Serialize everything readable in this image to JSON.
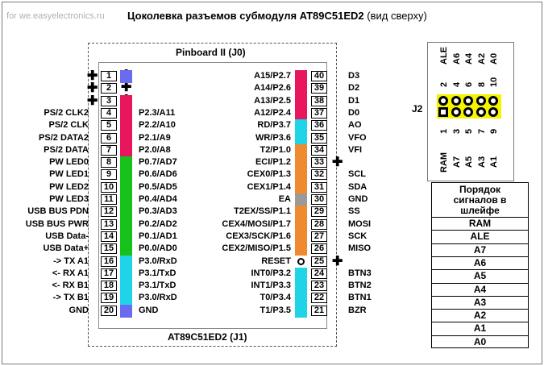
{
  "watermark": "for we.easyelectronics.ru",
  "title": "Цоколевка разъемов субмодуля AT89C51ED2",
  "title_sub": "(вид сверху)",
  "top_connector": "Pinboard II (J0)",
  "bottom_connector": "AT89C51ED2 (J1)",
  "colors": {
    "blue": "#6b6bf0",
    "red": "#e8175d",
    "green": "#18c01c",
    "cyan": "#20d4e8",
    "orange": "#f08a30",
    "gray": "#9a9a9a",
    "yellow": "#f4f400"
  },
  "left_pins": [
    {
      "num": "1",
      "outer": "✚",
      "inner": "",
      "pin": "plus",
      "color": "blue"
    },
    {
      "num": "2",
      "outer": "✚",
      "inner": "",
      "pin": "plus",
      "color": "none"
    },
    {
      "num": "3",
      "outer": "✚",
      "inner": "",
      "pin": "plus",
      "color": "red"
    },
    {
      "num": "4",
      "outer": "PS/2 CLK2",
      "inner": "P2.3/A11",
      "pin": "dot",
      "color": "red"
    },
    {
      "num": "5",
      "outer": "PS/2 CLK",
      "inner": "P2.2/A10",
      "pin": "dot",
      "color": "red"
    },
    {
      "num": "6",
      "outer": "PS/2 DATA2",
      "inner": "P2.1/A9",
      "pin": "dot",
      "color": "red"
    },
    {
      "num": "7",
      "outer": "PS/2 DATA",
      "inner": "P2.0/A8",
      "pin": "dot",
      "color": "red"
    },
    {
      "num": "8",
      "outer": "PW LED0",
      "inner": "P0.7/AD7",
      "pin": "dot",
      "color": "green"
    },
    {
      "num": "9",
      "outer": "PW LED1",
      "inner": "P0.6/AD6",
      "pin": "dot",
      "color": "green"
    },
    {
      "num": "10",
      "outer": "PW LED2",
      "inner": "P0.5/AD5",
      "pin": "dot",
      "color": "green"
    },
    {
      "num": "11",
      "outer": "PW LED3",
      "inner": "P0.4/AD4",
      "pin": "dot",
      "color": "green"
    },
    {
      "num": "12",
      "outer": "USB BUS PDN",
      "inner": "P0.3/AD3",
      "pin": "dot",
      "color": "green"
    },
    {
      "num": "13",
      "outer": "USB BUS PWR",
      "inner": "P0.2/AD2",
      "pin": "dot",
      "color": "green"
    },
    {
      "num": "14",
      "outer": "USB Data-",
      "inner": "P0.1/AD1",
      "pin": "dot",
      "color": "green"
    },
    {
      "num": "15",
      "outer": "USB Data+",
      "inner": "P0.0/AD0",
      "pin": "dot",
      "color": "green"
    },
    {
      "num": "16",
      "outer": "-> TX A1",
      "inner": "P3.0/RxD",
      "pin": "dot",
      "color": "cyan"
    },
    {
      "num": "17",
      "outer": "<- RX A1",
      "inner": "P3.1/TxD",
      "pin": "dot",
      "color": "cyan"
    },
    {
      "num": "18",
      "outer": "<- RX B1",
      "inner": "P3.1/TxD",
      "pin": "dot",
      "color": "cyan"
    },
    {
      "num": "19",
      "outer": "-> TX B1",
      "inner": "P3.0/RxD",
      "pin": "dot",
      "color": "cyan"
    },
    {
      "num": "20",
      "outer": "GND",
      "inner": "GND",
      "pin": "dot",
      "color": "blue"
    }
  ],
  "right_pins": [
    {
      "num": "40",
      "inner": "A15/P2.7",
      "outer": "D3",
      "pin": "dot",
      "color": "red"
    },
    {
      "num": "39",
      "inner": "A14/P2.6",
      "outer": "D2",
      "pin": "dot",
      "color": "red"
    },
    {
      "num": "38",
      "inner": "A13/P2.5",
      "outer": "D1",
      "pin": "dot",
      "color": "red"
    },
    {
      "num": "37",
      "inner": "A12/P2.4",
      "outer": "D0",
      "pin": "dot",
      "color": "red"
    },
    {
      "num": "36",
      "inner": "RD/P3.7",
      "outer": "AO",
      "pin": "dot",
      "color": "cyan"
    },
    {
      "num": "35",
      "inner": "WR/P3.6",
      "outer": "VFO",
      "pin": "dot",
      "color": "cyan"
    },
    {
      "num": "34",
      "inner": "T2/P1.0",
      "outer": "VFI",
      "pin": "dot",
      "color": "orange"
    },
    {
      "num": "33",
      "inner": "ECI/P1.2",
      "outer": "✚",
      "pin": "dot",
      "color": "orange"
    },
    {
      "num": "32",
      "inner": "CEX0/P1.3",
      "outer": "SCL",
      "pin": "dot",
      "color": "orange"
    },
    {
      "num": "31",
      "inner": "CEX1/P1.4",
      "outer": "SDA",
      "pin": "dot",
      "color": "orange"
    },
    {
      "num": "30",
      "inner": "EA",
      "outer": "GND",
      "pin": "dot",
      "color": "gray"
    },
    {
      "num": "29",
      "inner": "T2EX/SS/P1.1",
      "outer": "SS",
      "pin": "dot",
      "color": "orange"
    },
    {
      "num": "28",
      "inner": "CEX4/MOSI/P1.7",
      "outer": "MOSI",
      "pin": "dot",
      "color": "orange"
    },
    {
      "num": "27",
      "inner": "CEX3/SCK/P1.6",
      "outer": "SCK",
      "pin": "dot",
      "color": "orange"
    },
    {
      "num": "26",
      "inner": "CEX2/MISO/P1.5",
      "outer": "MISO",
      "pin": "dot",
      "color": "orange"
    },
    {
      "num": "25",
      "inner": "RESET",
      "outer": "✚",
      "pin": "dot",
      "color": "none"
    },
    {
      "num": "24",
      "inner": "INT0/P3.2",
      "outer": "BTN3",
      "pin": "dot",
      "color": "cyan"
    },
    {
      "num": "23",
      "inner": "INT1/P3.3",
      "outer": "BTN2",
      "pin": "dot",
      "color": "cyan"
    },
    {
      "num": "22",
      "inner": "T0/P3.4",
      "outer": "BTN1",
      "pin": "dot",
      "color": "cyan"
    },
    {
      "num": "21",
      "inner": "T1/P3.5",
      "outer": "BZR",
      "pin": "dot",
      "color": "cyan"
    }
  ],
  "j2": {
    "label": "J2",
    "top_signals": [
      "ALE",
      "A6",
      "A4",
      "A2",
      "A0"
    ],
    "top_numbers": [
      "2",
      "4",
      "6",
      "8",
      "10"
    ],
    "bottom_numbers": [
      "1",
      "3",
      "5",
      "7",
      "9"
    ],
    "bottom_signals": [
      "RAM",
      "A7",
      "A5",
      "A3",
      "A1"
    ]
  },
  "order_table": {
    "header": [
      "Порядок",
      "сигналов в",
      "шлейфе"
    ],
    "rows": [
      "RAM",
      "ALE",
      "A7",
      "A6",
      "A5",
      "A4",
      "A3",
      "A2",
      "A1",
      "A0"
    ]
  }
}
